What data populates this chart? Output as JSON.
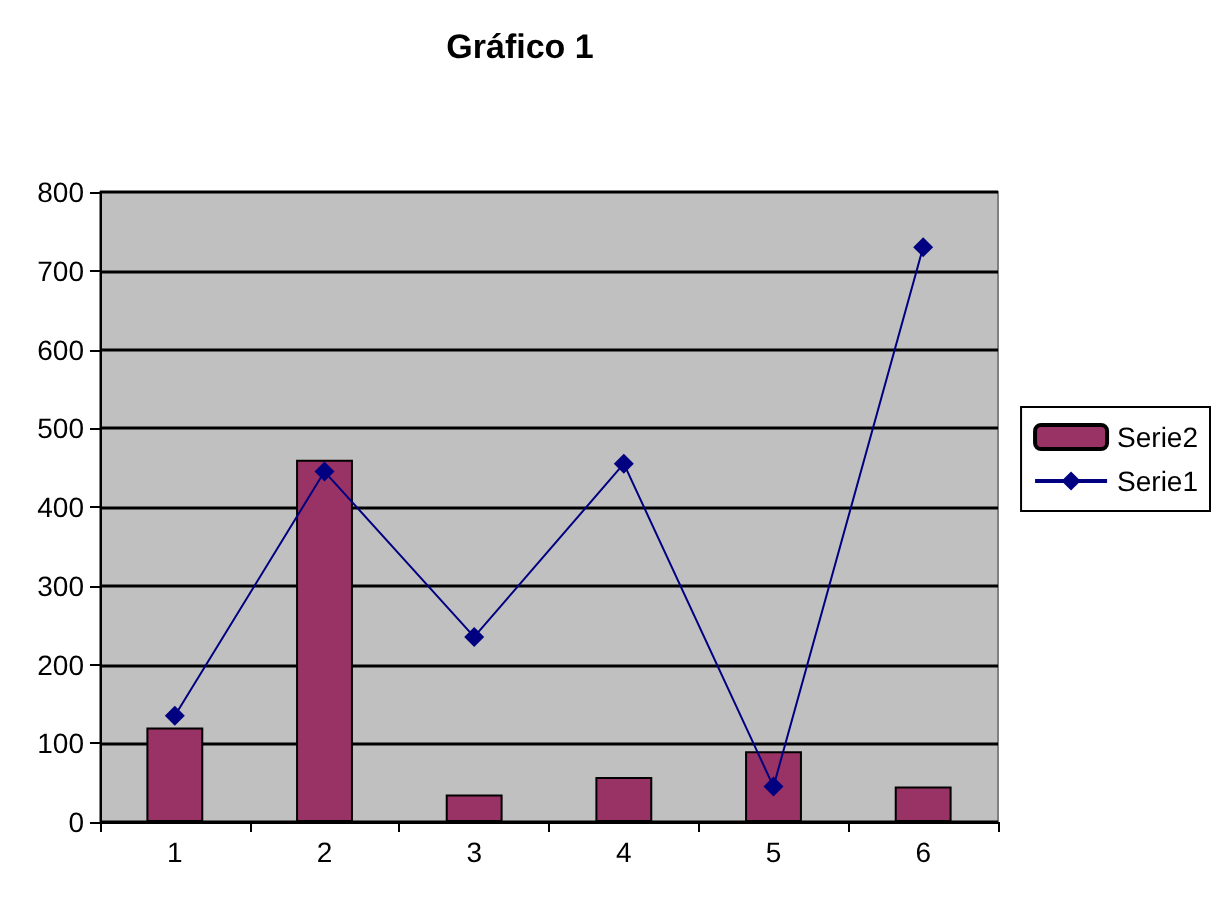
{
  "chart_data": {
    "type": "bar",
    "title": "Gráfico 1",
    "categories": [
      "1",
      "2",
      "3",
      "4",
      "5",
      "6"
    ],
    "series": [
      {
        "name": "Serie2",
        "color": "#993366",
        "values": [
          120,
          460,
          35,
          57,
          90,
          45
        ]
      },
      {
        "name": "Serie1",
        "type": "line",
        "color": "#000080",
        "values": [
          135,
          445,
          235,
          455,
          45,
          730
        ]
      }
    ],
    "ylim": [
      0,
      800
    ],
    "yticks": [
      0,
      100,
      200,
      300,
      400,
      500,
      600,
      700,
      800
    ],
    "grid": "y",
    "legend": "right",
    "marker": "diamond",
    "line_style": "solid"
  }
}
